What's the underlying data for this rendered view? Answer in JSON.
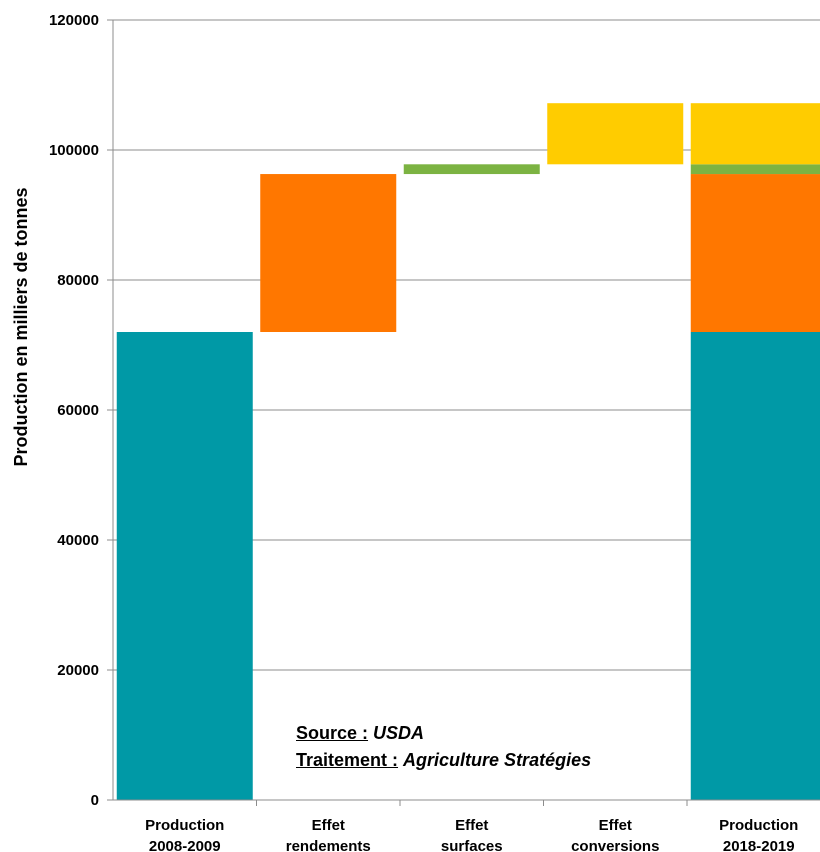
{
  "chart_data": {
    "type": "bar",
    "subtype": "waterfall",
    "ylabel": "Production en milliers de tonnes",
    "xlabel": "",
    "ylim": [
      0,
      120000
    ],
    "yticks": [
      "0",
      "20000",
      "40000",
      "60000",
      "80000",
      "100000",
      "120000"
    ],
    "grid": true,
    "categories": [
      "Production 2008-2009",
      "Effet rendements",
      "Effet surfaces",
      "Effet conversions",
      "Production 2018-2019"
    ],
    "category_lines": [
      [
        "Production",
        "2008-2009"
      ],
      [
        "Effet",
        "rendements"
      ],
      [
        "Effet",
        "surfaces"
      ],
      [
        "Effet",
        "conversions"
      ],
      [
        "Production",
        "2018-2019"
      ]
    ],
    "segments": [
      {
        "category": 0,
        "start": 0,
        "end": 72000,
        "color": "#0099A6"
      },
      {
        "category": 1,
        "start": 72000,
        "end": 96300,
        "color": "#FF7700"
      },
      {
        "category": 2,
        "start": 96300,
        "end": 97800,
        "color": "#7CB342"
      },
      {
        "category": 3,
        "start": 97800,
        "end": 107200,
        "color": "#FFCC00"
      },
      {
        "category": 4,
        "start": 0,
        "end": 72000,
        "color": "#0099A6"
      },
      {
        "category": 4,
        "start": 72000,
        "end": 96300,
        "color": "#FF7700"
      },
      {
        "category": 4,
        "start": 96300,
        "end": 97800,
        "color": "#7CB342"
      },
      {
        "category": 4,
        "start": 97800,
        "end": 107200,
        "color": "#FFCC00"
      }
    ]
  },
  "annotation": {
    "source_label": "Source :",
    "source_value": "USDA",
    "treatment_label": "Traitement :",
    "treatment_value": "Agriculture Stratégies"
  }
}
